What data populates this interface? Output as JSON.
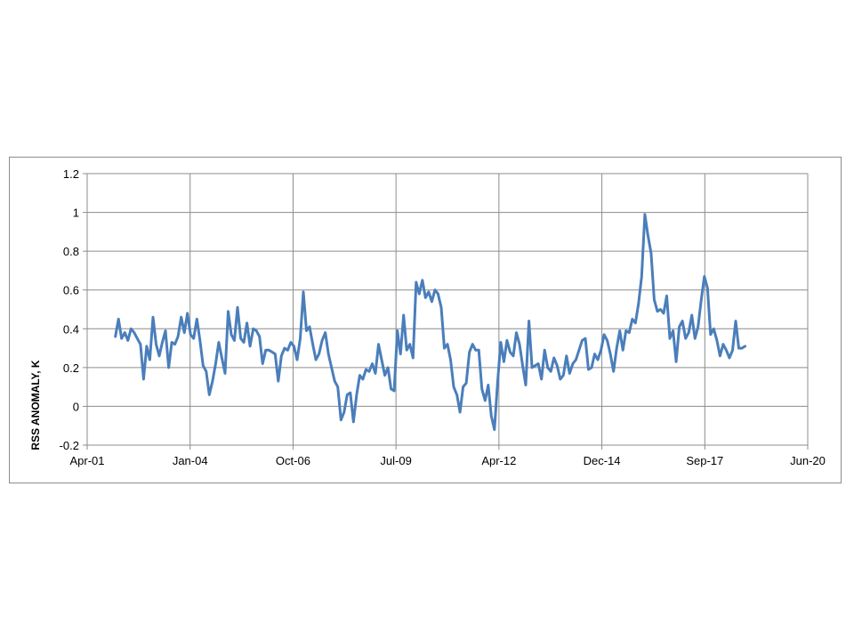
{
  "chart_data": {
    "type": "line",
    "title": "",
    "xlabel": "",
    "ylabel": "RSS ANOMALY, K",
    "x_tick_labels": [
      "Apr-01",
      "Jan-04",
      "Oct-06",
      "Jul-09",
      "Apr-12",
      "Dec-14",
      "Sep-17",
      "Jun-20"
    ],
    "y_tick_labels": [
      "-0.2",
      "0",
      "0.2",
      "0.4",
      "0.6",
      "0.8",
      "1",
      "1.2"
    ],
    "ylim": [
      -0.2,
      1.2
    ],
    "xlim": [
      "2001-04",
      "2020-06"
    ],
    "grid": true,
    "legend": "none",
    "line_color": "#4a7ebb",
    "series": [
      {
        "x": [
          "2002-01",
          "2002-02",
          "2002-03",
          "2002-04",
          "2002-05",
          "2002-06",
          "2002-07",
          "2002-08",
          "2002-09",
          "2002-10",
          "2002-11",
          "2002-12",
          "2003-01",
          "2003-02",
          "2003-03",
          "2003-04",
          "2003-05",
          "2003-06",
          "2003-07",
          "2003-08",
          "2003-09",
          "2003-10",
          "2003-11",
          "2003-12",
          "2004-01",
          "2004-02",
          "2004-03",
          "2004-04",
          "2004-05",
          "2004-06",
          "2004-07",
          "2004-08",
          "2004-09",
          "2004-10",
          "2004-11",
          "2004-12",
          "2005-01",
          "2005-02",
          "2005-03",
          "2005-04",
          "2005-05",
          "2005-06",
          "2005-07",
          "2005-08",
          "2005-09",
          "2005-10",
          "2005-11",
          "2005-12",
          "2006-01",
          "2006-02",
          "2006-03",
          "2006-04",
          "2006-05",
          "2006-06",
          "2006-07",
          "2006-08",
          "2006-09",
          "2006-10",
          "2006-11",
          "2006-12",
          "2007-01",
          "2007-02",
          "2007-03",
          "2007-04",
          "2007-05",
          "2007-06",
          "2007-07",
          "2007-08",
          "2007-09",
          "2007-10",
          "2007-11",
          "2007-12",
          "2008-01",
          "2008-02",
          "2008-03",
          "2008-04",
          "2008-05",
          "2008-06",
          "2008-07",
          "2008-08",
          "2008-09",
          "2008-10",
          "2008-11",
          "2008-12",
          "2009-01",
          "2009-02",
          "2009-03",
          "2009-04",
          "2009-05",
          "2009-06",
          "2009-07",
          "2009-08",
          "2009-09",
          "2009-10",
          "2009-11",
          "2009-12",
          "2010-01",
          "2010-02",
          "2010-03",
          "2010-04",
          "2010-05",
          "2010-06",
          "2010-07",
          "2010-08",
          "2010-09",
          "2010-10",
          "2010-11",
          "2010-12",
          "2011-01",
          "2011-02",
          "2011-03",
          "2011-04",
          "2011-05",
          "2011-06",
          "2011-07",
          "2011-08",
          "2011-09",
          "2011-10",
          "2011-11",
          "2011-12",
          "2012-01",
          "2012-02",
          "2012-03",
          "2012-04",
          "2012-05",
          "2012-06",
          "2012-07",
          "2012-08",
          "2012-09",
          "2012-10",
          "2012-11",
          "2012-12",
          "2013-01",
          "2013-02",
          "2013-03",
          "2013-04",
          "2013-05",
          "2013-06",
          "2013-07",
          "2013-08",
          "2013-09",
          "2013-10",
          "2013-11",
          "2013-12",
          "2014-01",
          "2014-02",
          "2014-03",
          "2014-04",
          "2014-05",
          "2014-06",
          "2014-07",
          "2014-08",
          "2014-09",
          "2014-10",
          "2014-11",
          "2014-12",
          "2015-01",
          "2015-02",
          "2015-03",
          "2015-04",
          "2015-05",
          "2015-06",
          "2015-07",
          "2015-08",
          "2015-09",
          "2015-10",
          "2015-11",
          "2015-12",
          "2016-01",
          "2016-02",
          "2016-03",
          "2016-04",
          "2016-05",
          "2016-06",
          "2016-07",
          "2016-08",
          "2016-09",
          "2016-10",
          "2016-11",
          "2016-12",
          "2017-01",
          "2017-02",
          "2017-03",
          "2017-04",
          "2017-05",
          "2017-06",
          "2017-07",
          "2017-08",
          "2017-09",
          "2017-10",
          "2017-11",
          "2017-12",
          "2018-01",
          "2018-02",
          "2018-03",
          "2018-04",
          "2018-05",
          "2018-06",
          "2018-07",
          "2018-08",
          "2018-09",
          "2018-10"
        ],
        "y": [
          0.36,
          0.45,
          0.35,
          0.38,
          0.34,
          0.4,
          0.38,
          0.35,
          0.32,
          0.14,
          0.31,
          0.24,
          0.46,
          0.32,
          0.26,
          0.33,
          0.39,
          0.2,
          0.33,
          0.32,
          0.36,
          0.46,
          0.38,
          0.48,
          0.37,
          0.35,
          0.45,
          0.34,
          0.21,
          0.18,
          0.06,
          0.13,
          0.22,
          0.33,
          0.25,
          0.17,
          0.49,
          0.37,
          0.34,
          0.51,
          0.35,
          0.33,
          0.43,
          0.31,
          0.4,
          0.39,
          0.36,
          0.22,
          0.29,
          0.29,
          0.28,
          0.27,
          0.13,
          0.26,
          0.3,
          0.29,
          0.33,
          0.31,
          0.24,
          0.35,
          0.59,
          0.39,
          0.41,
          0.32,
          0.24,
          0.27,
          0.34,
          0.38,
          0.27,
          0.2,
          0.13,
          0.1,
          -0.07,
          -0.03,
          0.06,
          0.07,
          -0.08,
          0.06,
          0.16,
          0.14,
          0.19,
          0.18,
          0.22,
          0.17,
          0.32,
          0.24,
          0.16,
          0.2,
          0.09,
          0.08,
          0.39,
          0.27,
          0.47,
          0.29,
          0.32,
          0.25,
          0.64,
          0.58,
          0.65,
          0.56,
          0.59,
          0.54,
          0.6,
          0.58,
          0.51,
          0.3,
          0.32,
          0.24,
          0.1,
          0.06,
          -0.03,
          0.1,
          0.12,
          0.28,
          0.32,
          0.29,
          0.29,
          0.09,
          0.03,
          0.11,
          -0.05,
          -0.12,
          0.12,
          0.33,
          0.23,
          0.34,
          0.28,
          0.26,
          0.38,
          0.32,
          0.21,
          0.11,
          0.44,
          0.2,
          0.21,
          0.22,
          0.14,
          0.29,
          0.2,
          0.18,
          0.25,
          0.21,
          0.14,
          0.16,
          0.26,
          0.17,
          0.22,
          0.24,
          0.29,
          0.34,
          0.35,
          0.19,
          0.2,
          0.27,
          0.24,
          0.29,
          0.37,
          0.34,
          0.27,
          0.18,
          0.3,
          0.39,
          0.29,
          0.39,
          0.38,
          0.45,
          0.43,
          0.53,
          0.67,
          0.99,
          0.88,
          0.79,
          0.55,
          0.49,
          0.5,
          0.48,
          0.57,
          0.35,
          0.39,
          0.23,
          0.41,
          0.44,
          0.35,
          0.38,
          0.47,
          0.35,
          0.41,
          0.55,
          0.67,
          0.61,
          0.37,
          0.4,
          0.34,
          0.26,
          0.32,
          0.29,
          0.25,
          0.29,
          0.44,
          0.3,
          0.3,
          0.31
        ]
      }
    ]
  }
}
